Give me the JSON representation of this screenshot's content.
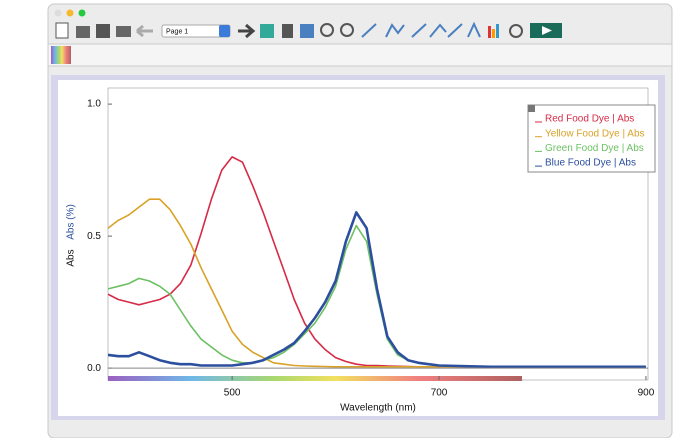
{
  "toolbar": {
    "page": "Page 1"
  },
  "chart_data": {
    "type": "line",
    "x_label": "Wavelength (nm)",
    "y_labels": [
      "Abs",
      "Abs (%)"
    ],
    "x": [
      380,
      390,
      400,
      410,
      420,
      430,
      440,
      450,
      460,
      470,
      480,
      490,
      500,
      510,
      520,
      530,
      540,
      550,
      560,
      570,
      580,
      590,
      600,
      610,
      620,
      630,
      640,
      650,
      660,
      670,
      680,
      690,
      700,
      750,
      800,
      850,
      900
    ],
    "series": [
      {
        "name": "Red Food Dye | Abs",
        "color": "#d62a46",
        "values": [
          0.28,
          0.26,
          0.25,
          0.24,
          0.25,
          0.26,
          0.28,
          0.32,
          0.39,
          0.51,
          0.64,
          0.75,
          0.8,
          0.78,
          0.69,
          0.59,
          0.48,
          0.37,
          0.26,
          0.17,
          0.11,
          0.07,
          0.04,
          0.025,
          0.015,
          0.01,
          0.01,
          0.008,
          0.007,
          0.006,
          0.005,
          0.005,
          0.005,
          0.005,
          0.005,
          0.005,
          0.005
        ]
      },
      {
        "name": "Yellow Food Dye | Abs",
        "color": "#d9a227",
        "values": [
          0.53,
          0.56,
          0.58,
          0.61,
          0.64,
          0.64,
          0.6,
          0.54,
          0.47,
          0.38,
          0.3,
          0.22,
          0.14,
          0.09,
          0.06,
          0.04,
          0.02,
          0.015,
          0.01,
          0.008,
          0.007,
          0.006,
          0.005,
          0.005,
          0.005,
          0.005,
          0.005,
          0.005,
          0.005,
          0.005,
          0.005,
          0.005,
          0.005,
          0.005,
          0.005,
          0.005,
          0.005
        ]
      },
      {
        "name": "Green Food Dye | Abs",
        "color": "#6cc063",
        "values": [
          0.3,
          0.31,
          0.32,
          0.34,
          0.33,
          0.31,
          0.28,
          0.22,
          0.16,
          0.11,
          0.08,
          0.05,
          0.03,
          0.02,
          0.02,
          0.03,
          0.04,
          0.06,
          0.09,
          0.13,
          0.17,
          0.23,
          0.31,
          0.45,
          0.54,
          0.48,
          0.28,
          0.11,
          0.05,
          0.03,
          0.02,
          0.015,
          0.01,
          0.005,
          0.005,
          0.005,
          0.005
        ]
      },
      {
        "name": "Blue Food Dye | Abs",
        "color": "#2c4f9e",
        "values": [
          0.05,
          0.045,
          0.045,
          0.06,
          0.045,
          0.03,
          0.02,
          0.015,
          0.015,
          0.01,
          0.01,
          0.01,
          0.01,
          0.015,
          0.02,
          0.03,
          0.05,
          0.07,
          0.095,
          0.14,
          0.19,
          0.25,
          0.33,
          0.48,
          0.59,
          0.53,
          0.3,
          0.12,
          0.06,
          0.03,
          0.02,
          0.015,
          0.01,
          0.005,
          0.005,
          0.005,
          0.005
        ]
      }
    ],
    "xlim": [
      380,
      902
    ],
    "xticks": [
      500,
      700,
      900
    ],
    "ylim": [
      -0.045,
      1.061
    ],
    "yticks": [
      {
        "value": 0,
        "label": "0.0"
      },
      0.5,
      {
        "value": 1,
        "label": "1.0"
      }
    ],
    "legend": "top-right"
  }
}
